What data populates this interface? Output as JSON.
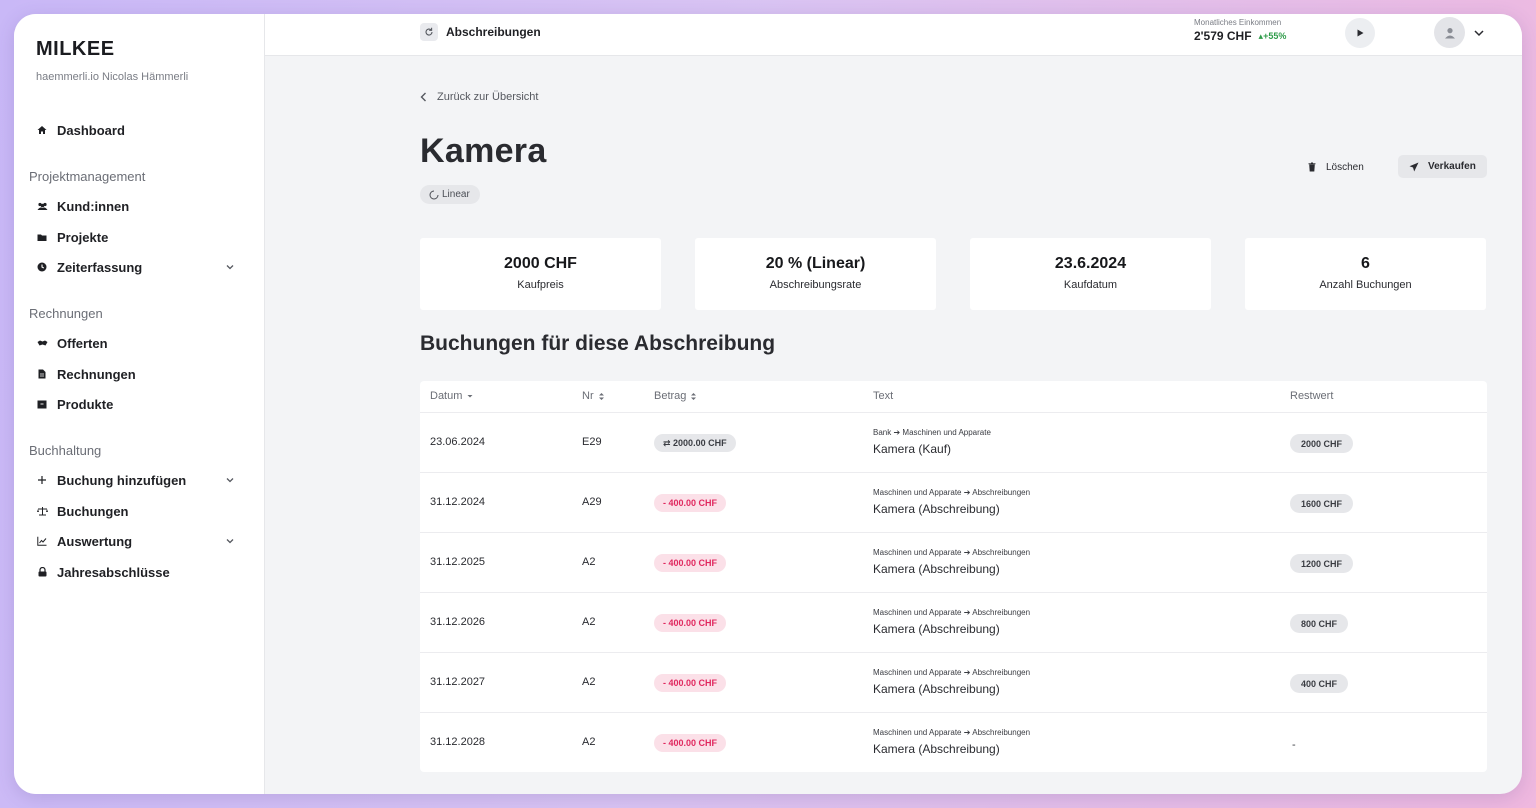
{
  "sidebar": {
    "brand": "MILKEE",
    "org": "haemmerli.io Nicolas Hämmerli",
    "dashboard": "Dashboard",
    "sections": {
      "project": "Projektmanagement",
      "invoices": "Rechnungen",
      "accounting": "Buchhaltung"
    },
    "items": {
      "customers": "Kund:innen",
      "projects": "Projekte",
      "time": "Zeiterfassung",
      "offers": "Offerten",
      "invoices": "Rechnungen",
      "products": "Produkte",
      "add_booking": "Buchung hinzufügen",
      "bookings": "Buchungen",
      "evaluation": "Auswertung",
      "closings": "Jahresabschlüsse"
    }
  },
  "topbar": {
    "crumb": "Abschreibungen",
    "income_label": "Monatliches Einkommen",
    "income_value": "2'579 CHF",
    "income_trend": "+55%"
  },
  "page": {
    "back": "Zurück zur Übersicht",
    "title": "Kamera",
    "method_chip": "Linear",
    "delete": "Löschen",
    "sell": "Verkaufen",
    "stats": [
      {
        "value": "2000 CHF",
        "label": "Kaufpreis"
      },
      {
        "value": "20 % (Linear)",
        "label": "Abschreibungsrate"
      },
      {
        "value": "23.6.2024",
        "label": "Kaufdatum"
      },
      {
        "value": "6",
        "label": "Anzahl Buchungen"
      }
    ],
    "bookings_title": "Buchungen für diese Abschreibung"
  },
  "table": {
    "headers": {
      "date": "Datum",
      "nr": "Nr",
      "amount": "Betrag",
      "text": "Text",
      "rest": "Restwert"
    },
    "rows": [
      {
        "date": "23.06.2024",
        "nr": "E29",
        "amount": "⇄ 2000.00 CHF",
        "from": "Bank",
        "to": "Maschinen und Apparate",
        "text": "Kamera (Kauf)",
        "rest": "2000 CHF"
      },
      {
        "date": "31.12.2024",
        "nr": "A29",
        "amount": "- 400.00 CHF",
        "from": "Maschinen und Apparate",
        "to": "Abschreibungen",
        "text": "Kamera (Abschreibung)",
        "rest": "1600 CHF"
      },
      {
        "date": "31.12.2025",
        "nr": "A2",
        "amount": "- 400.00 CHF",
        "from": "Maschinen und Apparate",
        "to": "Abschreibungen",
        "text": "Kamera (Abschreibung)",
        "rest": "1200 CHF"
      },
      {
        "date": "31.12.2026",
        "nr": "A2",
        "amount": "- 400.00 CHF",
        "from": "Maschinen und Apparate",
        "to": "Abschreibungen",
        "text": "Kamera (Abschreibung)",
        "rest": "800 CHF"
      },
      {
        "date": "31.12.2027",
        "nr": "A2",
        "amount": "- 400.00 CHF",
        "from": "Maschinen und Apparate",
        "to": "Abschreibungen",
        "text": "Kamera (Abschreibung)",
        "rest": "400 CHF"
      },
      {
        "date": "31.12.2028",
        "nr": "A2",
        "amount": "- 400.00 CHF",
        "from": "Maschinen und Apparate",
        "to": "Abschreibungen",
        "text": "Kamera (Abschreibung)",
        "rest": "-"
      }
    ]
  },
  "colors": {
    "accent_negative": "#e0285f",
    "trend_positive": "#2f9c4a"
  }
}
